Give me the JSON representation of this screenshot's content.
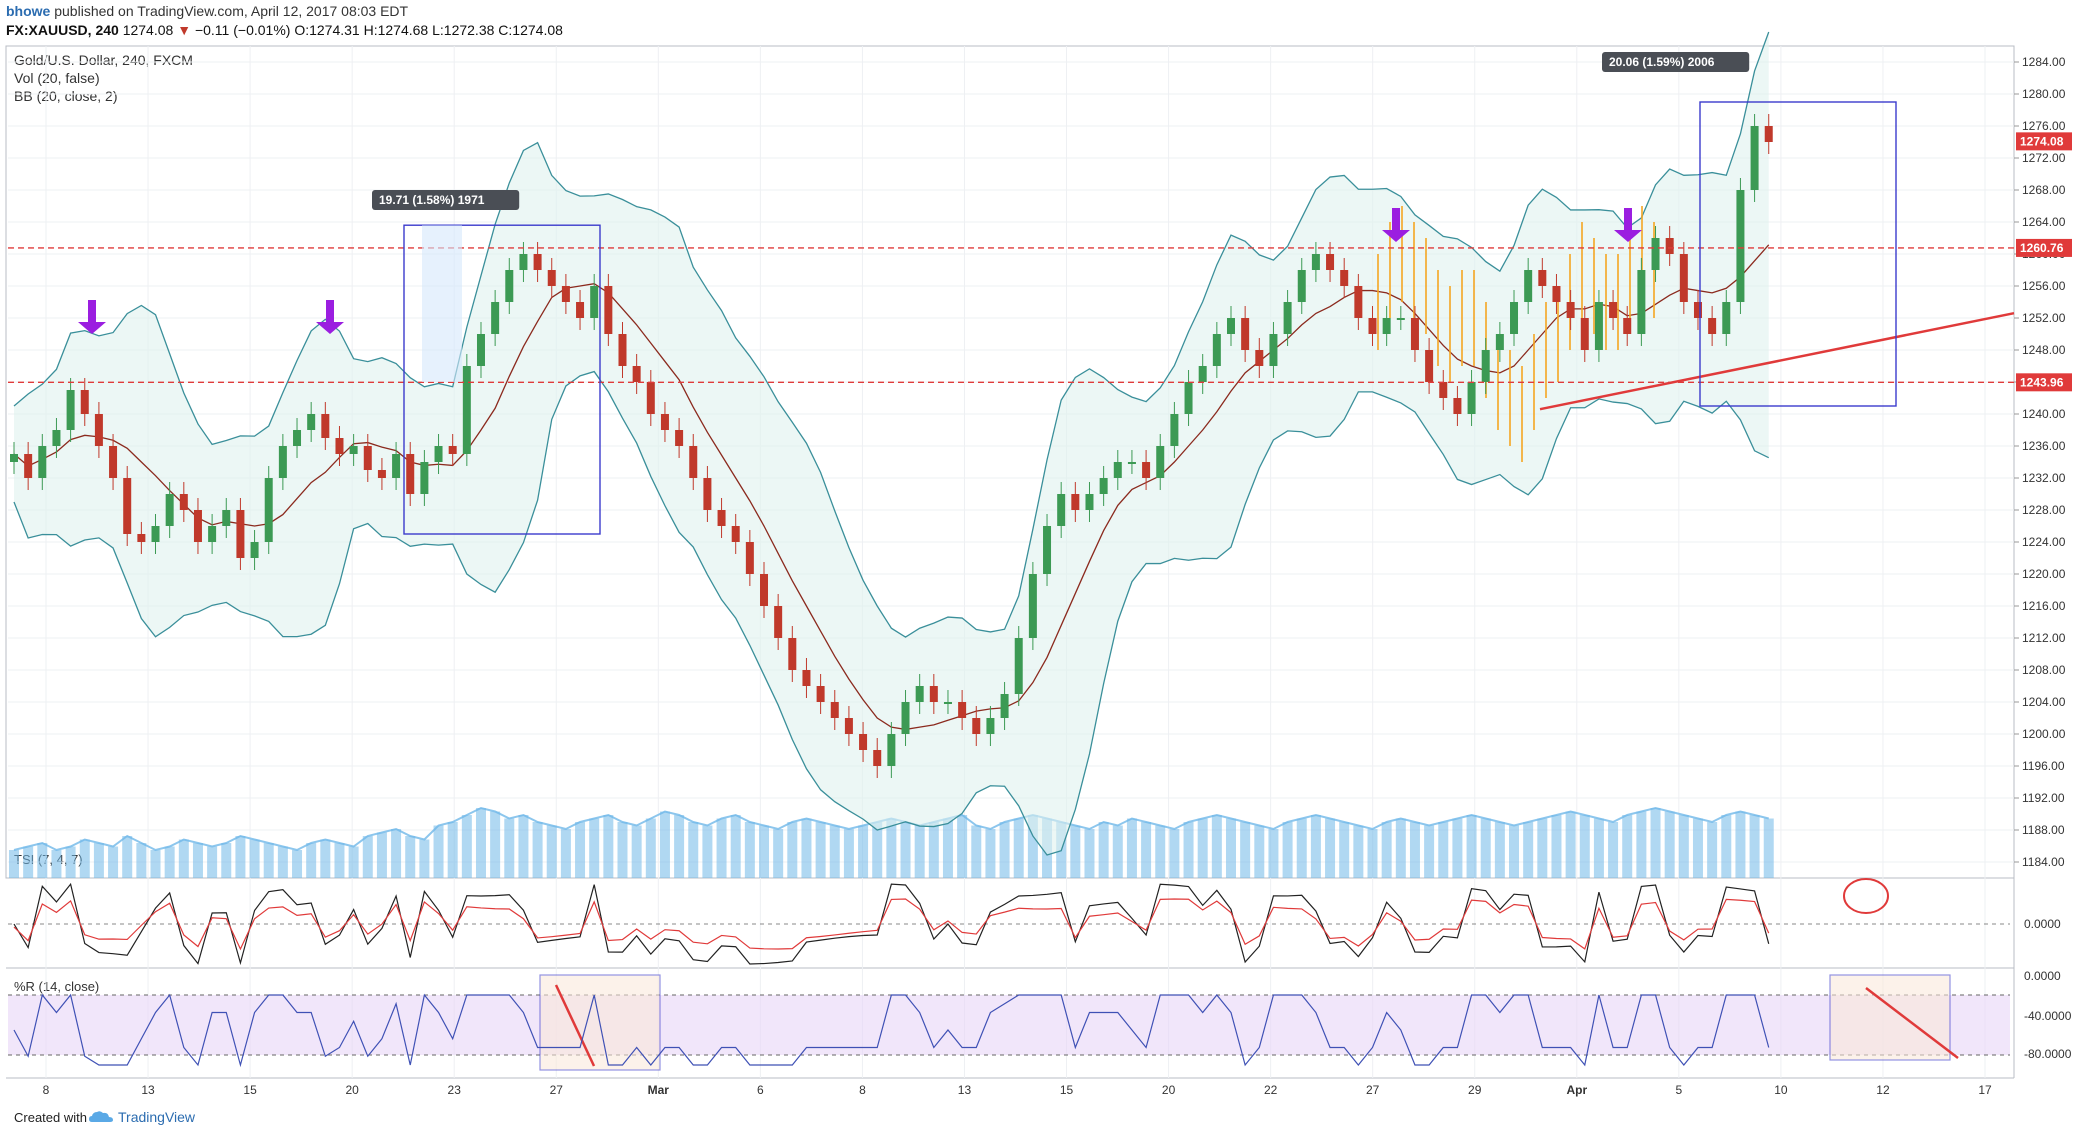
{
  "header": {
    "user": "bhowe",
    "published_text": "published on TradingView.com, April 12, 2017 08:03 EDT",
    "symbol": "FX:XAUUSD, 240",
    "last": "1274.08",
    "change_arrow": "▼",
    "change": "−0.11 (−0.01%)",
    "open": "O:1274.31",
    "high": "H:1274.68",
    "low": "L:1272.38",
    "close": "C:1274.08"
  },
  "legend": {
    "title": "Gold/U.S. Dollar, 240, FXCM",
    "vol": "Vol (20, false)",
    "bb": "BB (20, close, 2)"
  },
  "indicators": {
    "tsi_label": "TSI (7, 4, 7)",
    "wr_label": "%R (14, close)"
  },
  "annotations": {
    "measure_left": "19.71 (1.58%) 1971",
    "measure_right": "20.06 (1.59%) 2006"
  },
  "price_tags": {
    "current": "1274.08",
    "resistance": "1260.76",
    "support": "1243.96"
  },
  "footer": {
    "created_with": "Created with",
    "brand": "TradingView"
  },
  "colors": {
    "up_candle": "#3c9a54",
    "down_candle": "#c0392b",
    "bb_band": "#3a8f9a",
    "bb_basis": "#8b2a1e",
    "volume": "#6fb8e8",
    "arrow": "#9b1ee0",
    "dashed_line": "#e03a3a",
    "projection": "#f5a623",
    "tsi_line": "#222222",
    "tsi_signal": "#e03a3a",
    "wr_line": "#3f51b5",
    "wr_fill": "#e8d6f7"
  },
  "chart_data": {
    "type": "candlestick",
    "title": "Gold/U.S. Dollar, 240, FXCM",
    "ylim": [
      1182,
      1286
    ],
    "y_ticks": [
      "1284.00",
      "1280.00",
      "1276.00",
      "1272.00",
      "1268.00",
      "1264.00",
      "1260.00",
      "1256.00",
      "1252.00",
      "1248.00",
      "1244.00",
      "1240.00",
      "1236.00",
      "1232.00",
      "1228.00",
      "1224.00",
      "1220.00",
      "1216.00",
      "1212.00",
      "1208.00",
      "1204.00",
      "1200.00",
      "1196.00",
      "1192.00",
      "1188.00",
      "1184.00"
    ],
    "x_ticks": [
      "8",
      "13",
      "15",
      "20",
      "23",
      "27",
      "Mar",
      "6",
      "8",
      "13",
      "15",
      "20",
      "22",
      "27",
      "29",
      "Apr",
      "5",
      "10",
      "12",
      "17"
    ],
    "horizontal_levels": [
      1260.76,
      1243.96
    ],
    "tsi_ticks": [
      "0.0000"
    ],
    "wr_ticks": [
      "0.0000",
      "-40.0000",
      "-80.0000"
    ],
    "series": [
      {
        "name": "Gold/U.S. Dollar",
        "close_path": [
          1235,
          1232,
          1236,
          1238,
          1243,
          1240,
          1236,
          1232,
          1225,
          1224,
          1226,
          1230,
          1228,
          1224,
          1226,
          1228,
          1222,
          1224,
          1232,
          1236,
          1238,
          1240,
          1237,
          1235,
          1236,
          1233,
          1232,
          1235,
          1230,
          1234,
          1236,
          1235,
          1246,
          1250,
          1254,
          1258,
          1260,
          1258,
          1256,
          1254,
          1252,
          1256,
          1250,
          1246,
          1244,
          1240,
          1238,
          1236,
          1232,
          1228,
          1226,
          1224,
          1220,
          1216,
          1212,
          1208,
          1206,
          1204,
          1202,
          1200,
          1198,
          1196,
          1200,
          1204,
          1206,
          1204,
          1204,
          1202,
          1200,
          1202,
          1205,
          1212,
          1220,
          1226,
          1230,
          1228,
          1230,
          1232,
          1234,
          1234,
          1232,
          1236,
          1240,
          1244,
          1246,
          1250,
          1252,
          1248,
          1246,
          1250,
          1254,
          1258,
          1260,
          1258,
          1256,
          1252,
          1250,
          1252,
          1252,
          1248,
          1244,
          1242,
          1240,
          1244,
          1248,
          1250,
          1254,
          1258,
          1256,
          1254,
          1252,
          1248,
          1254,
          1252,
          1250,
          1258,
          1262,
          1260,
          1254,
          1252,
          1250,
          1254,
          1268,
          1276,
          1274
        ]
      }
    ],
    "volume": [
      8,
      9,
      10,
      8,
      9,
      11,
      10,
      9,
      12,
      10,
      8,
      9,
      11,
      10,
      9,
      10,
      12,
      11,
      10,
      9,
      8,
      10,
      11,
      10,
      9,
      12,
      13,
      14,
      12,
      11,
      15,
      16,
      18,
      20,
      19,
      17,
      18,
      16,
      15,
      14,
      16,
      17,
      18,
      16,
      15,
      17,
      19,
      18,
      16,
      15,
      17,
      18,
      16,
      15,
      14,
      16,
      17,
      16,
      15,
      14,
      15,
      16,
      17,
      16,
      15,
      16,
      17,
      18,
      15,
      14,
      16,
      17,
      18,
      17,
      16,
      15,
      14,
      16,
      15,
      17,
      16,
      15,
      14,
      16,
      17,
      18,
      17,
      16,
      15,
      14,
      16,
      17,
      18,
      17,
      16,
      15,
      14,
      16,
      17,
      16,
      15,
      16,
      17,
      18,
      17,
      16,
      15,
      16,
      17,
      18,
      19,
      18,
      17,
      16,
      18,
      19,
      20,
      19,
      18,
      17,
      16,
      18,
      19,
      18,
      17
    ]
  }
}
